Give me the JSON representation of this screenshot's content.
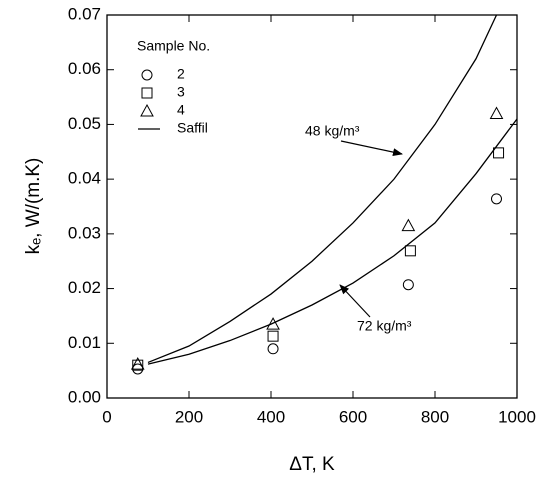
{
  "chart_data": {
    "type": "scatter",
    "x_label": "ΔT, K",
    "y_label": "kₑ, W/(m.K)",
    "xlim": [
      0,
      1000
    ],
    "xticks": [
      0,
      200,
      400,
      600,
      800,
      1000
    ],
    "ylim": [
      0,
      0.07
    ],
    "yticks": [
      {
        "value": 0,
        "label": "0.00"
      },
      0.01,
      0.02,
      0.03,
      0.04,
      0.05,
      0.06,
      0.07
    ],
    "legend_title": "Sample No.",
    "series": [
      {
        "name": "2",
        "marker": "circle",
        "color": "#000000",
        "x": [
          75,
          405,
          735,
          950
        ],
        "values": [
          0.0053,
          0.009,
          0.0207,
          0.0364
        ]
      },
      {
        "name": "3",
        "marker": "square",
        "color": "#000000",
        "x": [
          75,
          405,
          740,
          955
        ],
        "values": [
          0.006,
          0.0113,
          0.0269,
          0.0448
        ]
      },
      {
        "name": "4",
        "marker": "triangle",
        "color": "#000000",
        "x": [
          75,
          405,
          735,
          950
        ],
        "values": [
          0.0062,
          0.0135,
          0.0315,
          0.052
        ]
      }
    ],
    "curve_legend": "Saffil",
    "curves": [
      {
        "label": "48 kg/m³",
        "color": "#000000",
        "x": [
          100,
          200,
          300,
          400,
          500,
          600,
          700,
          800,
          900,
          950
        ],
        "values": [
          0.0065,
          0.0095,
          0.014,
          0.019,
          0.025,
          0.032,
          0.04,
          0.05,
          0.062,
          0.07
        ]
      },
      {
        "label": "72 kg/m³",
        "color": "#000000",
        "x": [
          100,
          200,
          300,
          400,
          500,
          600,
          700,
          800,
          900,
          1000
        ],
        "values": [
          0.0062,
          0.008,
          0.0105,
          0.0135,
          0.017,
          0.021,
          0.026,
          0.032,
          0.041,
          0.051
        ]
      }
    ]
  }
}
